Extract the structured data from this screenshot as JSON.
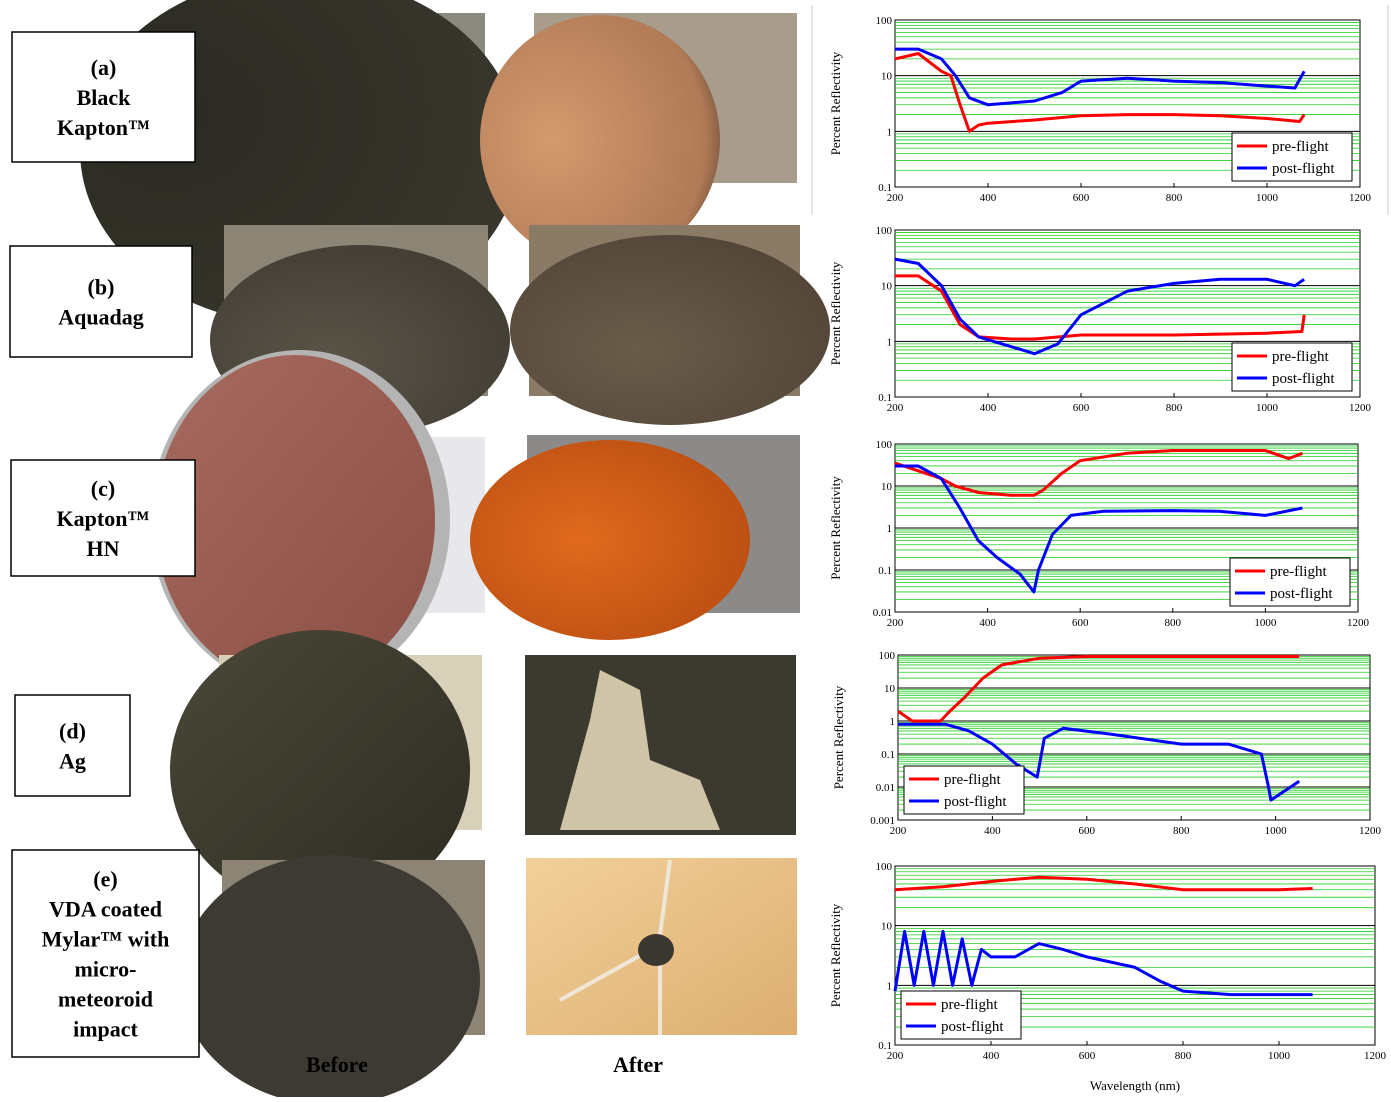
{
  "panels": [
    {
      "lines": [
        "(a)",
        "Black",
        "Kapton™"
      ]
    },
    {
      "lines": [
        "(b)",
        "Aquadag"
      ]
    },
    {
      "lines": [
        "(c)",
        "Kapton™",
        "HN"
      ]
    },
    {
      "lines": [
        "(d)",
        "Ag"
      ]
    },
    {
      "lines": [
        "(e)",
        "VDA coated",
        "Mylar™ with",
        "micro-",
        "meteoroid",
        "impact"
      ]
    }
  ],
  "column_labels": [
    "Before",
    "After"
  ],
  "chart_data": [
    {
      "type": "line",
      "ylabel": "Percent Reflectivity",
      "log_y": true,
      "legend": "lower right",
      "xlim": [
        200,
        1200
      ],
      "xticks": [
        200,
        400,
        600,
        800,
        1000,
        1200
      ],
      "ylim": [
        0.1,
        100
      ],
      "yticks": [
        0.1,
        1,
        10,
        100
      ],
      "grid": true,
      "series": [
        {
          "name": "pre-flight",
          "color": "#ff0000",
          "x": [
            200,
            250,
            300,
            320,
            340,
            360,
            380,
            400,
            500,
            600,
            700,
            800,
            900,
            1000,
            1070,
            1080
          ],
          "values": [
            20,
            25,
            12,
            10,
            3,
            1,
            1.3,
            1.4,
            1.6,
            1.9,
            2,
            2,
            1.9,
            1.7,
            1.5,
            2
          ]
        },
        {
          "name": "post-flight",
          "color": "#0000ff",
          "x": [
            200,
            250,
            300,
            330,
            360,
            400,
            500,
            560,
            600,
            700,
            800,
            900,
            1000,
            1060,
            1080
          ],
          "values": [
            30,
            30,
            20,
            10,
            4,
            3,
            3.5,
            5,
            8,
            9,
            8,
            7.5,
            6.5,
            6,
            12
          ]
        }
      ]
    },
    {
      "type": "line",
      "ylabel": "Percent Reflectivity",
      "log_y": true,
      "legend": "lower right",
      "xlim": [
        200,
        1200
      ],
      "xticks": [
        200,
        400,
        600,
        800,
        1000,
        1200
      ],
      "ylim": [
        0.1,
        100
      ],
      "yticks": [
        0.1,
        1,
        10,
        100
      ],
      "grid": true,
      "series": [
        {
          "name": "pre-flight",
          "color": "#ff0000",
          "x": [
            200,
            250,
            300,
            340,
            380,
            450,
            500,
            600,
            800,
            1000,
            1075,
            1080
          ],
          "values": [
            15,
            15,
            8,
            2,
            1.2,
            1.1,
            1.1,
            1.3,
            1.3,
            1.4,
            1.5,
            3
          ]
        },
        {
          "name": "post-flight",
          "color": "#0000ff",
          "x": [
            200,
            250,
            300,
            340,
            380,
            450,
            500,
            550,
            600,
            700,
            800,
            900,
            1000,
            1060,
            1080
          ],
          "values": [
            30,
            25,
            10,
            2.5,
            1.2,
            0.8,
            0.6,
            0.9,
            3,
            8,
            11,
            13,
            13,
            10,
            13
          ]
        }
      ]
    },
    {
      "type": "line",
      "ylabel": "Percent Reflectivity",
      "log_y": true,
      "legend": "lower right",
      "xlim": [
        200,
        1200
      ],
      "xticks": [
        200,
        400,
        600,
        800,
        1000,
        1200
      ],
      "ylim": [
        0.01,
        100
      ],
      "yticks": [
        0.01,
        0.1,
        1,
        10,
        100
      ],
      "grid": true,
      "series": [
        {
          "name": "pre-flight",
          "color": "#ff0000",
          "x": [
            200,
            300,
            330,
            380,
            450,
            500,
            520,
            560,
            600,
            700,
            800,
            900,
            1000,
            1050,
            1080
          ],
          "values": [
            35,
            15,
            10,
            7,
            6,
            6,
            8,
            20,
            40,
            60,
            70,
            70,
            70,
            45,
            60
          ]
        },
        {
          "name": "post-flight",
          "color": "#0000ff",
          "x": [
            200,
            250,
            300,
            340,
            380,
            420,
            470,
            500,
            510,
            540,
            580,
            650,
            800,
            900,
            1000,
            1080
          ],
          "values": [
            30,
            30,
            15,
            3,
            0.5,
            0.2,
            0.08,
            0.03,
            0.1,
            0.7,
            2,
            2.5,
            2.6,
            2.5,
            2,
            3
          ]
        }
      ]
    },
    {
      "type": "line",
      "ylabel": "Percent Reflectivity",
      "log_y": true,
      "legend": "lower left",
      "xlim": [
        200,
        1200
      ],
      "xticks": [
        200,
        400,
        600,
        800,
        1000,
        1200
      ],
      "ylim": [
        0.001,
        100
      ],
      "yticks": [
        0.001,
        0.01,
        0.1,
        1,
        10,
        100
      ],
      "grid": true,
      "series": [
        {
          "name": "pre-flight",
          "color": "#ff0000",
          "x": [
            200,
            230,
            260,
            290,
            310,
            340,
            380,
            420,
            500,
            600,
            800,
            1000,
            1050
          ],
          "values": [
            2,
            1,
            1,
            1,
            2,
            5,
            20,
            50,
            80,
            90,
            90,
            90,
            90
          ]
        },
        {
          "name": "post-flight",
          "color": "#0000ff",
          "x": [
            200,
            300,
            350,
            400,
            450,
            495,
            510,
            550,
            650,
            800,
            900,
            970,
            985,
            990,
            1050
          ],
          "values": [
            0.8,
            0.8,
            0.5,
            0.2,
            0.05,
            0.02,
            0.3,
            0.6,
            0.4,
            0.2,
            0.2,
            0.1,
            0.01,
            0.004,
            0.015
          ]
        }
      ]
    },
    {
      "type": "line",
      "ylabel": "Percent Reflectivity",
      "xlabel": "Wavelength (nm)",
      "log_y": true,
      "legend": "lower left",
      "xlim": [
        200,
        1200
      ],
      "xticks": [
        200,
        400,
        600,
        800,
        1000,
        1200
      ],
      "ylim": [
        0.1,
        100
      ],
      "yticks": [
        0.1,
        1,
        10,
        100
      ],
      "grid": true,
      "series": [
        {
          "name": "pre-flight",
          "color": "#ff0000",
          "x": [
            200,
            300,
            400,
            500,
            600,
            700,
            800,
            900,
            1000,
            1070
          ],
          "values": [
            40,
            45,
            55,
            65,
            60,
            50,
            40,
            40,
            40,
            42
          ]
        },
        {
          "name": "post-flight",
          "color": "#0000ff",
          "x": [
            200,
            220,
            240,
            260,
            280,
            300,
            320,
            340,
            360,
            380,
            400,
            450,
            500,
            550,
            600,
            700,
            750,
            800,
            900,
            1000,
            1070
          ],
          "values": [
            0.8,
            8,
            1,
            8,
            1,
            8,
            1,
            6,
            1,
            4,
            3,
            3,
            5,
            4,
            3,
            2,
            1.2,
            0.8,
            0.7,
            0.7,
            0.7
          ]
        }
      ]
    }
  ]
}
